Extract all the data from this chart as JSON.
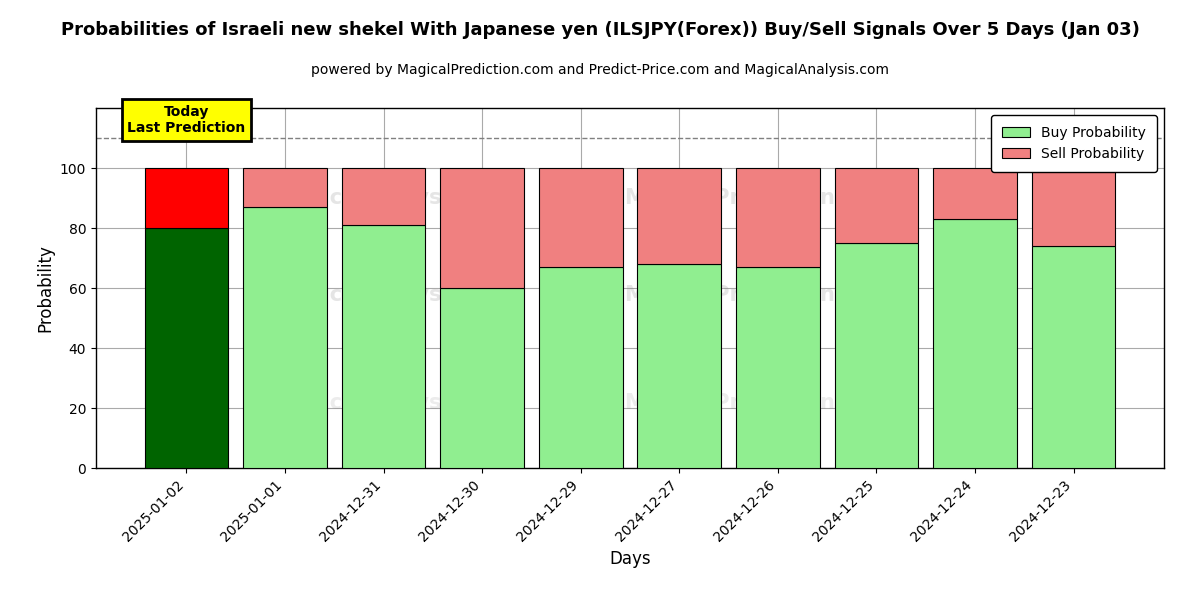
{
  "title": "Probabilities of Israeli new shekel With Japanese yen (ILSJPY(Forex)) Buy/Sell Signals Over 5 Days (Jan 03)",
  "subtitle": "powered by MagicalPrediction.com and Predict-Price.com and MagicalAnalysis.com",
  "xlabel": "Days",
  "ylabel": "Probability",
  "categories": [
    "2025-01-02",
    "2025-01-01",
    "2024-12-31",
    "2024-12-30",
    "2024-12-29",
    "2024-12-27",
    "2024-12-26",
    "2024-12-25",
    "2024-12-24",
    "2024-12-23"
  ],
  "buy_values": [
    80,
    87,
    81,
    60,
    67,
    68,
    67,
    75,
    83,
    74
  ],
  "sell_values": [
    20,
    13,
    19,
    40,
    33,
    32,
    33,
    25,
    17,
    26
  ],
  "today_bar_buy_color": "#006400",
  "today_bar_sell_color": "#FF0000",
  "regular_bar_buy_color": "#90EE90",
  "regular_bar_sell_color": "#F08080",
  "today_label_bg": "#FFFF00",
  "today_label_text": "Today\nLast Prediction",
  "ylim": [
    0,
    120
  ],
  "yticks": [
    0,
    20,
    40,
    60,
    80,
    100
  ],
  "grid_color": "#AAAAAA",
  "legend_buy_label": "Buy Probability",
  "legend_sell_label": "Sell Probability",
  "dashed_line_y": 110,
  "bar_width": 0.85,
  "title_fontsize": 13,
  "subtitle_fontsize": 10,
  "axis_label_fontsize": 12,
  "tick_fontsize": 10
}
